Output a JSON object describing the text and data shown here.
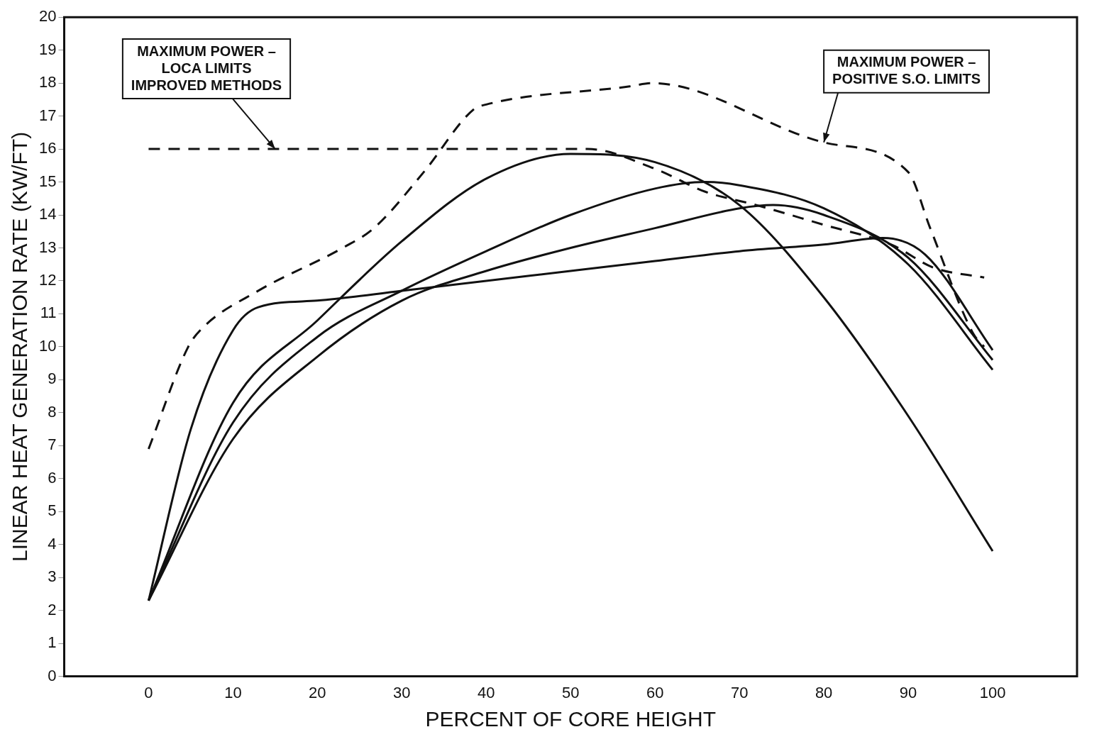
{
  "chart_data": {
    "type": "line",
    "xlabel": "PERCENT OF CORE HEIGHT",
    "ylabel": "LINEAR HEAT GENERATION RATE (KW/FT)",
    "xlim": [
      -10,
      110
    ],
    "xticks": [
      0,
      10,
      20,
      30,
      40,
      50,
      60,
      70,
      80,
      90,
      100
    ],
    "ylim": [
      0,
      20
    ],
    "yticks": [
      0,
      1,
      2,
      3,
      4,
      5,
      6,
      7,
      8,
      9,
      10,
      11,
      12,
      13,
      14,
      15,
      16,
      17,
      18,
      19,
      20
    ],
    "grid": false,
    "legend": false,
    "marker": "none",
    "series": [
      {
        "color": "#111111",
        "line_style": "dashed",
        "x": [
          0,
          15,
          52,
          60,
          66,
          72,
          80,
          88,
          93,
          99
        ],
        "values": [
          16,
          16,
          16,
          15.4,
          14.7,
          14.3,
          13.7,
          13.1,
          12.4,
          12.1
        ]
      },
      {
        "color": "#111111",
        "line_style": "dashed",
        "x": [
          0,
          4.7,
          6.3,
          13,
          23,
          26.7,
          32.6,
          38.5,
          40,
          57,
          59.6,
          80,
          90,
          92.6,
          97.7,
          99
        ],
        "values": [
          6.9,
          10,
          10.55,
          11.7,
          13,
          13.6,
          15.3,
          17.2,
          17.35,
          17.9,
          18,
          16.2,
          15.3,
          13.6,
          10.4,
          10
        ]
      },
      {
        "color": "#111111",
        "line_style": "solid",
        "x": [
          0,
          10,
          20,
          30,
          40,
          50,
          60,
          70,
          80,
          90,
          100
        ],
        "values": [
          2.3,
          8.3,
          10.8,
          13.2,
          15.1,
          15.85,
          15.6,
          14.3,
          11.5,
          7.9,
          3.8
        ]
      },
      {
        "color": "#111111",
        "line_style": "solid",
        "x": [
          0,
          10,
          20,
          30,
          40,
          50,
          60,
          66,
          70,
          80,
          90,
          100
        ],
        "values": [
          2.3,
          7.7,
          10.3,
          11.7,
          12.9,
          14,
          14.8,
          15,
          14.9,
          14.2,
          12.5,
          9.3
        ]
      },
      {
        "color": "#111111",
        "line_style": "solid",
        "x": [
          0,
          10,
          20,
          30,
          40,
          50,
          60,
          70,
          74,
          80,
          90,
          100
        ],
        "values": [
          2.3,
          7.2,
          9.7,
          11.4,
          12.3,
          13,
          13.6,
          14.2,
          14.3,
          14,
          12.7,
          9.6
        ]
      },
      {
        "color": "#111111",
        "line_style": "solid",
        "x": [
          0,
          5,
          10,
          13,
          20,
          30,
          40,
          50,
          60,
          70,
          80,
          87,
          92,
          100
        ],
        "values": [
          2.3,
          7.5,
          10.5,
          11.2,
          11.4,
          11.7,
          12,
          12.3,
          12.6,
          12.9,
          13.1,
          13.3,
          12.8,
          9.9
        ]
      }
    ],
    "annotations": [
      {
        "text": "MAXIMUM POWER –\nLOCA LIMITS\nIMPROVED METHODS",
        "x": 15,
        "y": 16
      },
      {
        "text": "MAXIMUM POWER –\nPOSITIVE S.O. LIMITS",
        "x": 80,
        "y": 16.2
      }
    ]
  }
}
